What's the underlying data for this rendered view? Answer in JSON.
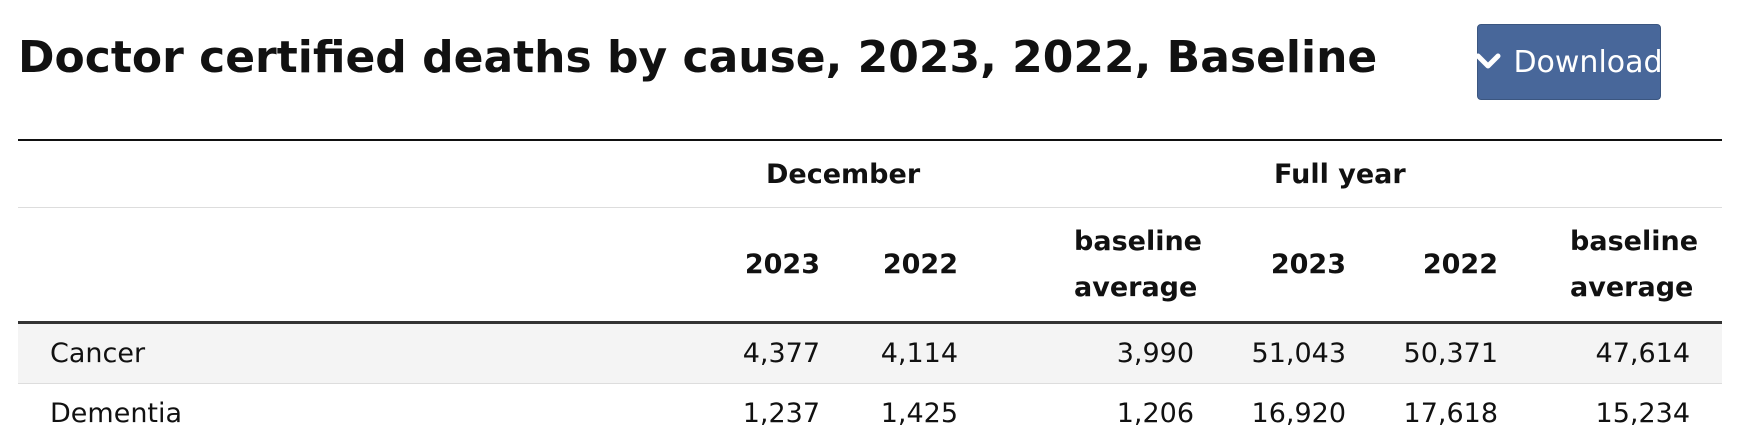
{
  "title": "Doctor certified deaths by cause, 2023, 2022, Baseline",
  "download": {
    "label": "Download",
    "icon": "chevron-down-icon",
    "color": "#48679a"
  },
  "table": {
    "groups": [
      "December",
      "Full year"
    ],
    "columns": [
      "2023",
      "2022",
      "baseline average",
      "2023",
      "2022",
      "baseline average"
    ],
    "rows": [
      {
        "label": "Cancer",
        "values": [
          "4,377",
          "4,114",
          "3,990",
          "51,043",
          "50,371",
          "47,614"
        ]
      },
      {
        "label": "Dementia",
        "values": [
          "1,237",
          "1,425",
          "1,206",
          "16,920",
          "17,618",
          "15,234"
        ]
      }
    ]
  }
}
